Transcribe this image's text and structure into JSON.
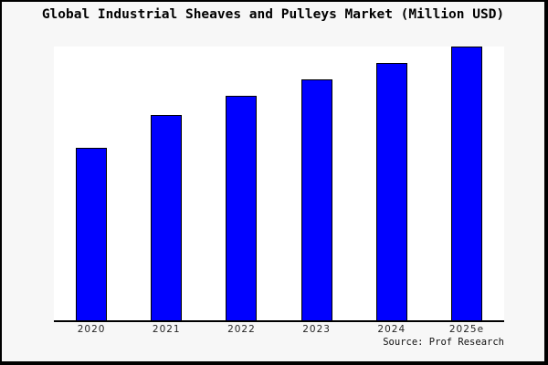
{
  "window": {
    "background_color": "#f7f7f7",
    "frame_color": "#000000"
  },
  "chart_data": {
    "type": "bar",
    "title": "Global Industrial Sheaves and Pulleys Market (Million USD)",
    "categories": [
      "2020",
      "2021",
      "2022",
      "2023",
      "2024",
      "2025e"
    ],
    "values": [
      63,
      75,
      82,
      88,
      94,
      100
    ],
    "units_note": "y-axis has no tick labels; values estimated as percent of the tallest (2025e) bar",
    "xlabel": "",
    "ylabel": "",
    "ylim": [
      0,
      100
    ],
    "grid": false,
    "legend_position": "none",
    "bar_color": "#0000ff",
    "bar_border_color": "#000000",
    "plot_background": "#ffffff",
    "axis_color": "#000000",
    "source": "Source: Prof Research"
  }
}
